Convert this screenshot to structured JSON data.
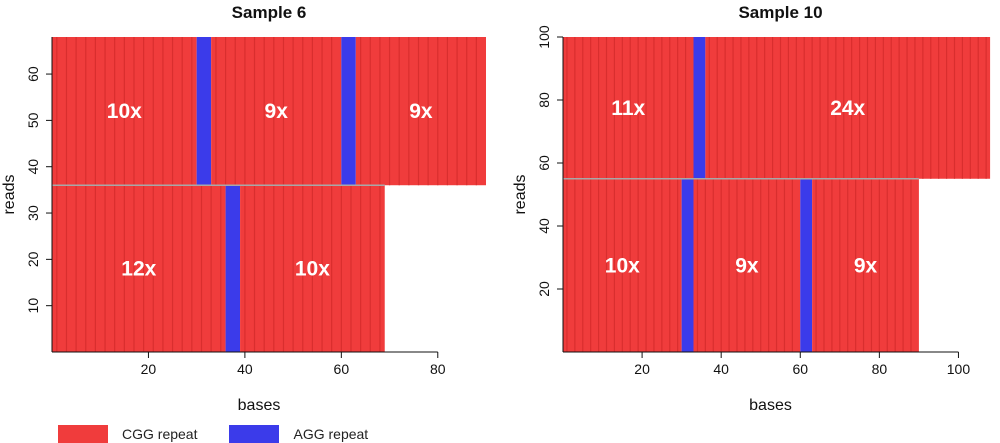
{
  "colors": {
    "cgg": "#f03c3c",
    "cgg_dark": "#d92e2e",
    "agg": "#3b3bea",
    "gap": "#a8a8a8",
    "label": "#ffffff"
  },
  "legend": [
    {
      "label": "CGG repeat",
      "color_key": "cgg"
    },
    {
      "label": "AGG repeat",
      "color_key": "agg"
    }
  ],
  "chart_data": [
    {
      "type": "heatmap",
      "title": "Sample 6",
      "xlabel": "bases",
      "ylabel": "reads",
      "xlim": [
        0,
        90
      ],
      "ylim": [
        0,
        68
      ],
      "xticks": [
        20,
        40,
        60,
        80
      ],
      "yticks": [
        10,
        20,
        30,
        40,
        50,
        60
      ],
      "groups": [
        {
          "reads": [
            36,
            68
          ],
          "segments": [
            {
              "repeat": "CGG",
              "x": [
                0,
                30
              ],
              "label": "10x"
            },
            {
              "repeat": "AGG",
              "x": [
                30,
                33
              ]
            },
            {
              "repeat": "CGG",
              "x": [
                33,
                60
              ],
              "label": "9x"
            },
            {
              "repeat": "AGG",
              "x": [
                60,
                63
              ]
            },
            {
              "repeat": "CGG",
              "x": [
                63,
                90
              ],
              "label": "9x"
            }
          ]
        },
        {
          "reads": [
            0,
            36
          ],
          "segments": [
            {
              "repeat": "CGG",
              "x": [
                0,
                36
              ],
              "label": "12x"
            },
            {
              "repeat": "AGG",
              "x": [
                36,
                39
              ]
            },
            {
              "repeat": "CGG",
              "x": [
                39,
                69
              ],
              "label": "10x"
            }
          ]
        }
      ]
    },
    {
      "type": "heatmap",
      "title": "Sample 10",
      "xlabel": "bases",
      "ylabel": "reads",
      "xlim": [
        0,
        110
      ],
      "ylim": [
        0,
        100
      ],
      "xticks": [
        20,
        40,
        60,
        80,
        100
      ],
      "yticks": [
        20,
        40,
        60,
        80,
        100
      ],
      "groups": [
        {
          "reads": [
            55,
            100
          ],
          "segments": [
            {
              "repeat": "CGG",
              "x": [
                0,
                33
              ],
              "label": "11x"
            },
            {
              "repeat": "AGG",
              "x": [
                33,
                36
              ]
            },
            {
              "repeat": "CGG",
              "x": [
                36,
                108
              ],
              "label": "24x"
            }
          ]
        },
        {
          "reads": [
            0,
            55
          ],
          "segments": [
            {
              "repeat": "CGG",
              "x": [
                0,
                30
              ],
              "label": "10x"
            },
            {
              "repeat": "AGG",
              "x": [
                30,
                33
              ]
            },
            {
              "repeat": "CGG",
              "x": [
                33,
                60
              ],
              "label": "9x"
            },
            {
              "repeat": "AGG",
              "x": [
                60,
                63
              ]
            },
            {
              "repeat": "CGG",
              "x": [
                63,
                90
              ],
              "label": "9x"
            }
          ]
        }
      ]
    }
  ]
}
